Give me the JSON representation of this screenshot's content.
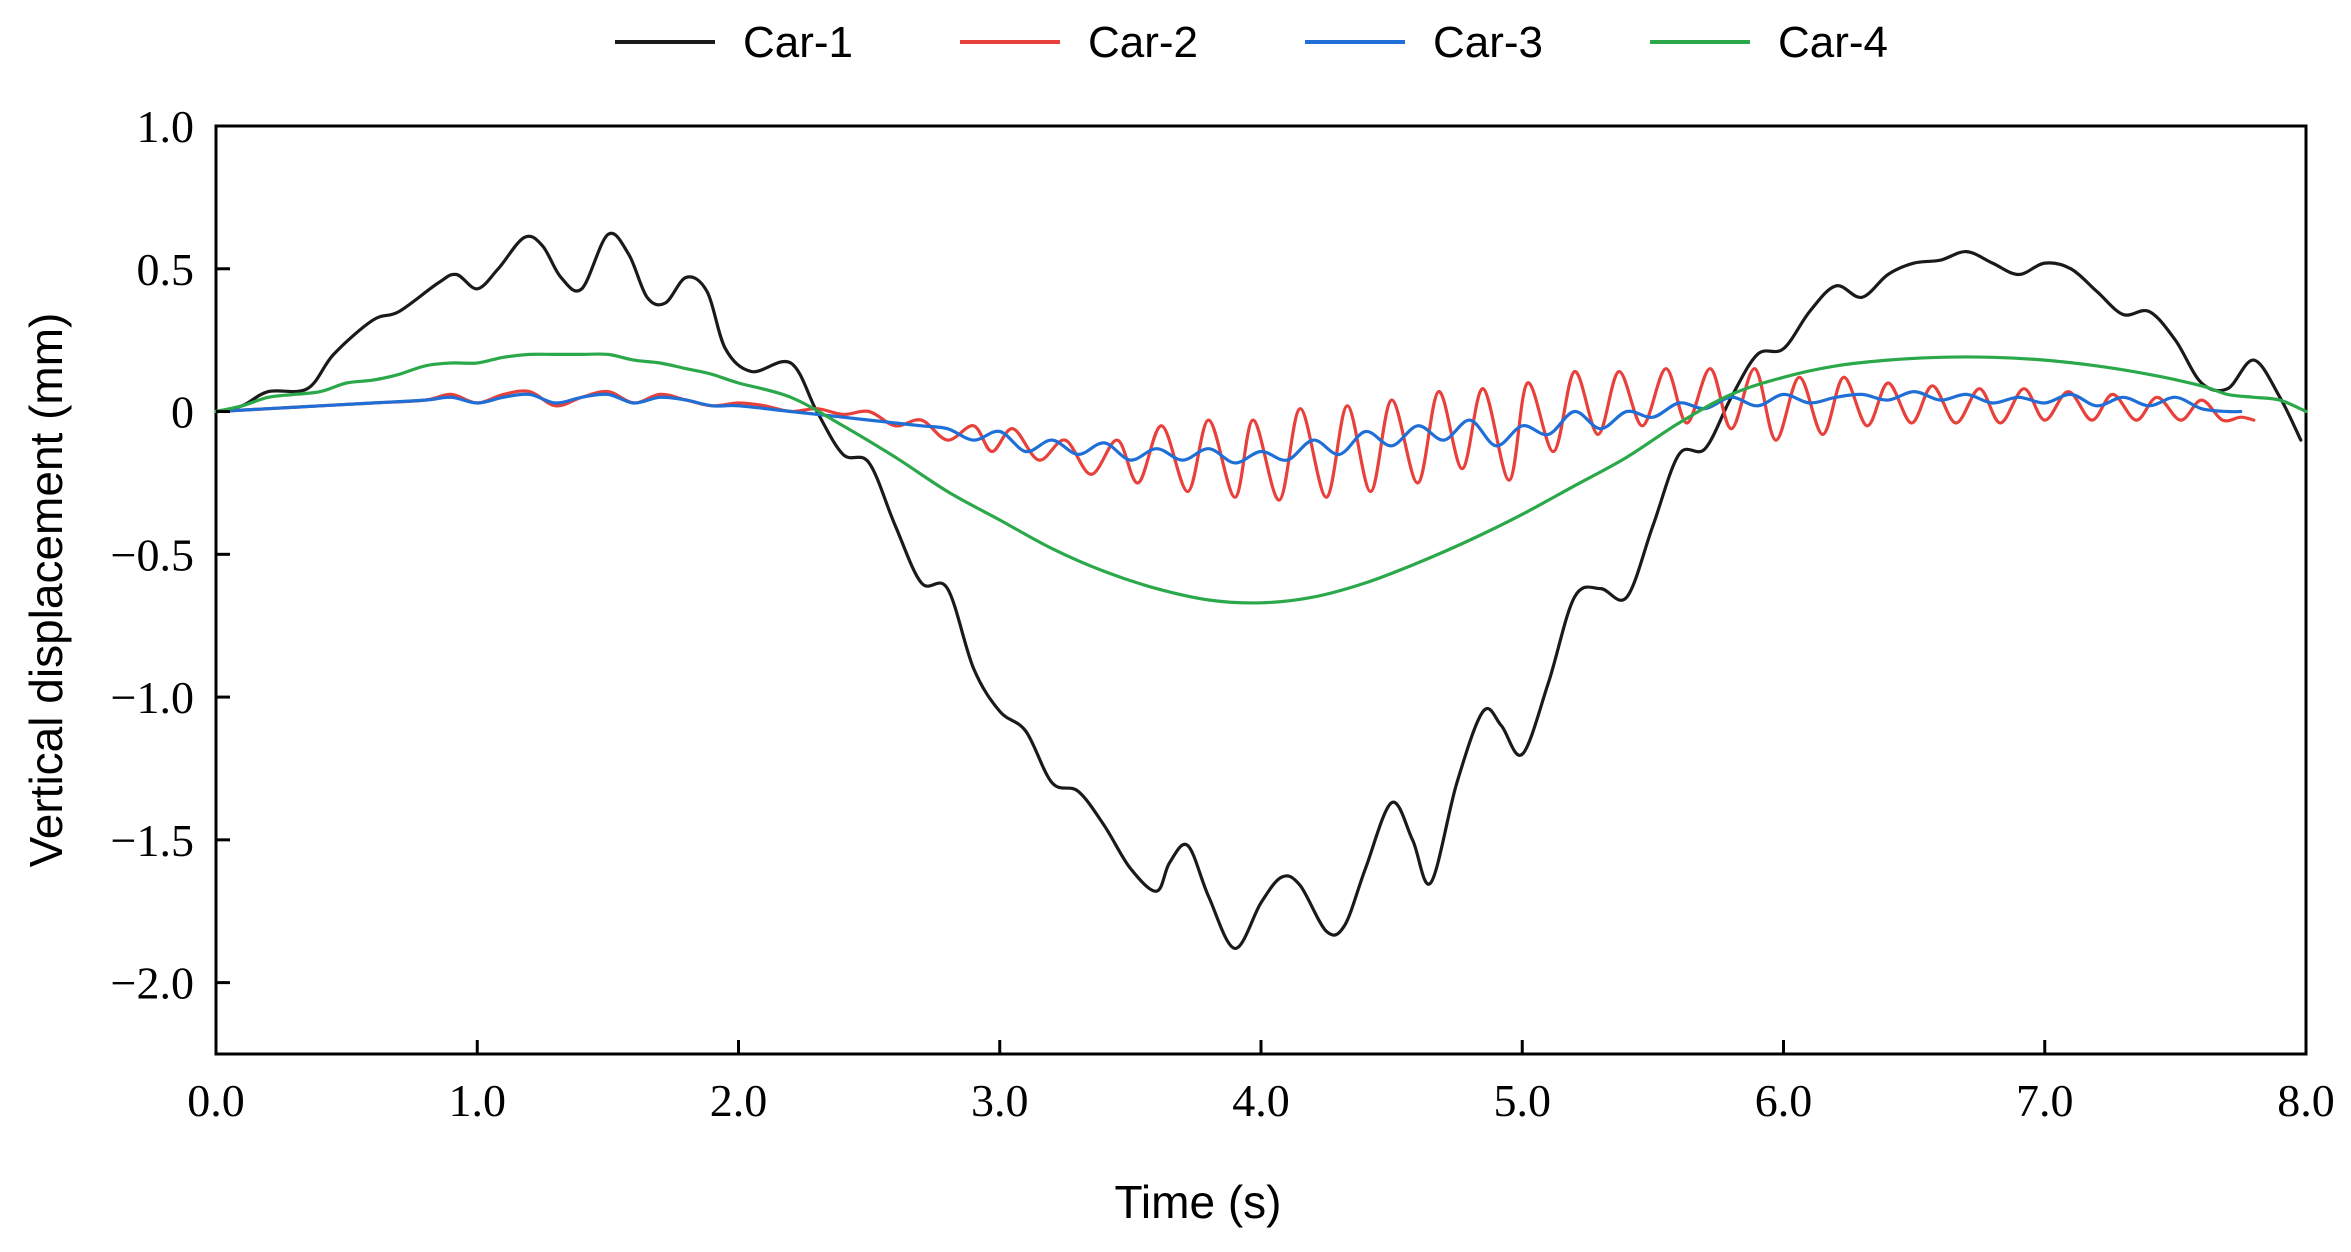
{
  "chart_data": {
    "type": "line",
    "title": "",
    "xlabel": "Time (s)",
    "ylabel": "Vertical displacement (mm)",
    "xlim": [
      0,
      8
    ],
    "ylim": [
      -2.25,
      1.0
    ],
    "xticks": [
      0,
      1,
      2,
      3,
      4,
      5,
      6,
      7,
      8
    ],
    "xtick_labels": [
      "0.0",
      "1.0",
      "2.0",
      "3.0",
      "4.0",
      "5.0",
      "6.0",
      "7.0",
      "8.0"
    ],
    "yticks": [
      1.0,
      0.5,
      0,
      -0.5,
      -1.0,
      -1.5,
      -2.0
    ],
    "ytick_labels": [
      "1.0",
      "0.5",
      "0",
      "−0.5",
      "−1.0",
      "−1.5",
      "−2.0"
    ],
    "grid": false,
    "legend_position": "top-center",
    "series": [
      {
        "name": "Car-1",
        "color": "#1a1a1a",
        "x": [
          0,
          0.1,
          0.2,
          0.35,
          0.45,
          0.6,
          0.7,
          0.85,
          0.92,
          1.0,
          1.08,
          1.18,
          1.25,
          1.32,
          1.4,
          1.5,
          1.58,
          1.65,
          1.72,
          1.8,
          1.88,
          1.95,
          2.05,
          2.2,
          2.3,
          2.4,
          2.5,
          2.6,
          2.7,
          2.8,
          2.9,
          3.0,
          3.1,
          3.2,
          3.3,
          3.4,
          3.5,
          3.6,
          3.65,
          3.72,
          3.8,
          3.9,
          4.0,
          4.08,
          4.15,
          4.25,
          4.32,
          4.4,
          4.5,
          4.58,
          4.65,
          4.75,
          4.85,
          4.92,
          5.0,
          5.1,
          5.2,
          5.3,
          5.4,
          5.5,
          5.6,
          5.7,
          5.8,
          5.9,
          6.0,
          6.1,
          6.2,
          6.3,
          6.4,
          6.5,
          6.6,
          6.7,
          6.8,
          6.9,
          7.0,
          7.1,
          7.2,
          7.3,
          7.4,
          7.5,
          7.6,
          7.7,
          7.8,
          7.9,
          7.98
        ],
        "y": [
          0,
          0.02,
          0.07,
          0.08,
          0.2,
          0.32,
          0.35,
          0.45,
          0.48,
          0.43,
          0.5,
          0.61,
          0.58,
          0.47,
          0.43,
          0.62,
          0.55,
          0.4,
          0.38,
          0.47,
          0.42,
          0.22,
          0.14,
          0.17,
          0.0,
          -0.15,
          -0.18,
          -0.4,
          -0.6,
          -0.62,
          -0.9,
          -1.05,
          -1.12,
          -1.3,
          -1.33,
          -1.45,
          -1.6,
          -1.68,
          -1.58,
          -1.52,
          -1.7,
          -1.88,
          -1.72,
          -1.63,
          -1.66,
          -1.82,
          -1.8,
          -1.6,
          -1.37,
          -1.5,
          -1.65,
          -1.3,
          -1.05,
          -1.1,
          -1.2,
          -0.95,
          -0.65,
          -0.62,
          -0.65,
          -0.4,
          -0.15,
          -0.13,
          0.05,
          0.2,
          0.22,
          0.35,
          0.44,
          0.4,
          0.48,
          0.52,
          0.53,
          0.56,
          0.52,
          0.48,
          0.52,
          0.5,
          0.42,
          0.34,
          0.35,
          0.25,
          0.1,
          0.08,
          0.18,
          0.05,
          -0.1
        ]
      },
      {
        "name": "Car-2",
        "color": "#e8403a",
        "x": [
          0,
          0.2,
          0.4,
          0.6,
          0.8,
          0.9,
          1.0,
          1.1,
          1.2,
          1.3,
          1.4,
          1.5,
          1.6,
          1.7,
          1.8,
          1.9,
          2.0,
          2.1,
          2.2,
          2.3,
          2.4,
          2.5,
          2.6,
          2.7,
          2.8,
          2.9,
          2.97,
          3.05,
          3.15,
          3.25,
          3.35,
          3.45,
          3.53,
          3.62,
          3.72,
          3.8,
          3.9,
          3.97,
          4.07,
          4.15,
          4.25,
          4.33,
          4.42,
          4.5,
          4.6,
          4.68,
          4.77,
          4.85,
          4.95,
          5.02,
          5.12,
          5.2,
          5.29,
          5.37,
          5.46,
          5.55,
          5.63,
          5.72,
          5.8,
          5.89,
          5.97,
          6.06,
          6.15,
          6.23,
          6.32,
          6.4,
          6.49,
          6.57,
          6.66,
          6.75,
          6.83,
          6.92,
          7.0,
          7.09,
          7.18,
          7.26,
          7.35,
          7.43,
          7.52,
          7.6,
          7.68,
          7.75,
          7.8
        ],
        "y": [
          0,
          0.01,
          0.02,
          0.03,
          0.04,
          0.06,
          0.03,
          0.06,
          0.07,
          0.02,
          0.05,
          0.07,
          0.03,
          0.06,
          0.04,
          0.02,
          0.03,
          0.02,
          0.0,
          0.01,
          -0.01,
          0.0,
          -0.05,
          -0.03,
          -0.1,
          -0.05,
          -0.14,
          -0.06,
          -0.17,
          -0.1,
          -0.22,
          -0.1,
          -0.25,
          -0.05,
          -0.28,
          -0.03,
          -0.3,
          -0.03,
          -0.31,
          0.01,
          -0.3,
          0.02,
          -0.28,
          0.04,
          -0.25,
          0.07,
          -0.2,
          0.08,
          -0.24,
          0.1,
          -0.14,
          0.14,
          -0.08,
          0.14,
          -0.05,
          0.15,
          -0.04,
          0.15,
          -0.06,
          0.15,
          -0.1,
          0.12,
          -0.08,
          0.12,
          -0.05,
          0.1,
          -0.04,
          0.09,
          -0.04,
          0.08,
          -0.04,
          0.08,
          -0.03,
          0.07,
          -0.03,
          0.06,
          -0.03,
          0.05,
          -0.03,
          0.04,
          -0.03,
          -0.02,
          -0.03
        ]
      },
      {
        "name": "Car-3",
        "color": "#1f6fd6",
        "x": [
          0,
          0.2,
          0.4,
          0.6,
          0.8,
          0.9,
          1.0,
          1.1,
          1.2,
          1.3,
          1.4,
          1.5,
          1.6,
          1.7,
          1.8,
          1.9,
          2.0,
          2.2,
          2.4,
          2.6,
          2.7,
          2.8,
          2.9,
          3.0,
          3.1,
          3.2,
          3.3,
          3.4,
          3.5,
          3.6,
          3.7,
          3.8,
          3.9,
          4.0,
          4.1,
          4.2,
          4.3,
          4.4,
          4.5,
          4.6,
          4.7,
          4.8,
          4.9,
          5.0,
          5.1,
          5.2,
          5.3,
          5.4,
          5.5,
          5.6,
          5.7,
          5.8,
          5.9,
          6.0,
          6.1,
          6.2,
          6.3,
          6.4,
          6.5,
          6.6,
          6.7,
          6.8,
          6.9,
          7.0,
          7.1,
          7.2,
          7.3,
          7.4,
          7.5,
          7.6,
          7.7,
          7.75
        ],
        "y": [
          0,
          0.01,
          0.02,
          0.03,
          0.04,
          0.05,
          0.03,
          0.05,
          0.06,
          0.03,
          0.05,
          0.06,
          0.03,
          0.05,
          0.04,
          0.02,
          0.02,
          0.0,
          -0.02,
          -0.04,
          -0.05,
          -0.06,
          -0.1,
          -0.07,
          -0.14,
          -0.1,
          -0.15,
          -0.11,
          -0.17,
          -0.13,
          -0.17,
          -0.13,
          -0.18,
          -0.14,
          -0.17,
          -0.1,
          -0.15,
          -0.07,
          -0.12,
          -0.05,
          -0.1,
          -0.03,
          -0.12,
          -0.05,
          -0.08,
          0.0,
          -0.06,
          0.0,
          -0.02,
          0.03,
          0.01,
          0.05,
          0.02,
          0.06,
          0.03,
          0.05,
          0.06,
          0.04,
          0.07,
          0.04,
          0.06,
          0.03,
          0.05,
          0.03,
          0.06,
          0.02,
          0.05,
          0.02,
          0.05,
          0.01,
          0.0,
          0.0
        ]
      },
      {
        "name": "Car-4",
        "color": "#2ba84a",
        "x": [
          0,
          0.1,
          0.2,
          0.3,
          0.4,
          0.5,
          0.6,
          0.7,
          0.8,
          0.9,
          1.0,
          1.1,
          1.2,
          1.3,
          1.4,
          1.5,
          1.6,
          1.7,
          1.8,
          1.9,
          2.0,
          2.2,
          2.4,
          2.6,
          2.8,
          3.0,
          3.2,
          3.4,
          3.6,
          3.8,
          4.0,
          4.2,
          4.4,
          4.6,
          4.8,
          5.0,
          5.2,
          5.4,
          5.6,
          5.8,
          6.0,
          6.2,
          6.4,
          6.6,
          6.8,
          7.0,
          7.2,
          7.4,
          7.6,
          7.7,
          7.8,
          7.9,
          8.0
        ],
        "y": [
          0,
          0.02,
          0.05,
          0.06,
          0.07,
          0.1,
          0.11,
          0.13,
          0.16,
          0.17,
          0.17,
          0.19,
          0.2,
          0.2,
          0.2,
          0.2,
          0.18,
          0.17,
          0.15,
          0.13,
          0.1,
          0.05,
          -0.05,
          -0.16,
          -0.28,
          -0.38,
          -0.48,
          -0.56,
          -0.62,
          -0.66,
          -0.67,
          -0.65,
          -0.6,
          -0.53,
          -0.45,
          -0.36,
          -0.26,
          -0.16,
          -0.04,
          0.06,
          0.12,
          0.16,
          0.18,
          0.19,
          0.19,
          0.18,
          0.16,
          0.13,
          0.09,
          0.06,
          0.05,
          0.04,
          0.0
        ]
      }
    ]
  }
}
